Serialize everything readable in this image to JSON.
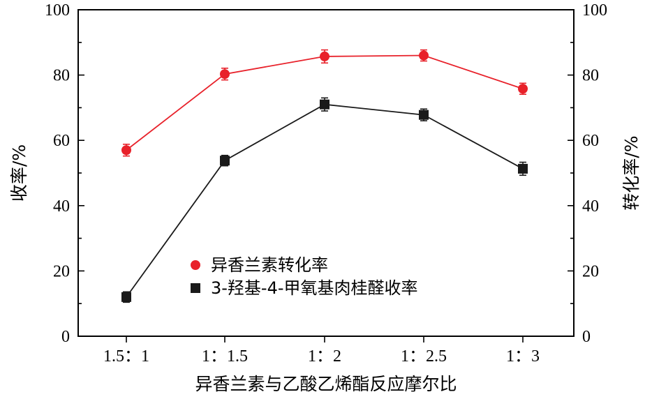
{
  "chart_data": {
    "type": "line",
    "categories": [
      "1.5：1",
      "1：1.5",
      "1：2",
      "1：2.5",
      "1：3"
    ],
    "xlabel": "异香兰素与乙酸乙烯酯反应摩尔比",
    "ylabel_left": "收率/%",
    "ylabel_right": "转化率/%",
    "ylim": [
      0,
      100
    ],
    "yticks": [
      0,
      20,
      40,
      60,
      80,
      100
    ],
    "grid": false,
    "legend_position": "center-left",
    "series": [
      {
        "name": "异香兰素转化率",
        "color": "#e8212a",
        "marker": "circle",
        "axis": "right",
        "values": [
          57,
          80.3,
          85.7,
          86,
          75.8
        ],
        "errors": [
          1.8,
          1.8,
          2.0,
          1.7,
          1.7
        ]
      },
      {
        "name": "3-羟基-4-甲氧基肉桂醛收率",
        "color": "#1a1a1a",
        "marker": "square",
        "axis": "left",
        "values": [
          12,
          53.8,
          71,
          67.8,
          51.3
        ],
        "errors": [
          1.6,
          1.6,
          2.0,
          1.8,
          2.0
        ]
      }
    ]
  }
}
